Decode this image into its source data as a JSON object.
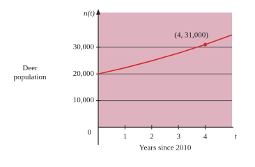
{
  "chart_data": {
    "type": "line",
    "y_label": "n(t)",
    "x_label": "t",
    "y_title": "Deer population",
    "x_title": "Years since 2010",
    "x": [
      0,
      1,
      2,
      3,
      4,
      5
    ],
    "series": [
      {
        "color": "#d42b2b",
        "values": [
          20000,
          22300,
          24900,
          27800,
          31000,
          34600
        ]
      }
    ],
    "highlight": {
      "index": 4,
      "label": "(4, 31,000)"
    },
    "xlim": [
      0,
      5
    ],
    "xticks": [
      1,
      2,
      3,
      4
    ],
    "ylim": [
      0,
      43000
    ],
    "yticks": [
      0,
      {
        "value": 10000,
        "label": "10,000"
      },
      {
        "value": 20000,
        "label": "20,000"
      },
      {
        "value": 30000,
        "label": "30,000"
      }
    ],
    "grid": true,
    "background": "#dfb2bf"
  }
}
